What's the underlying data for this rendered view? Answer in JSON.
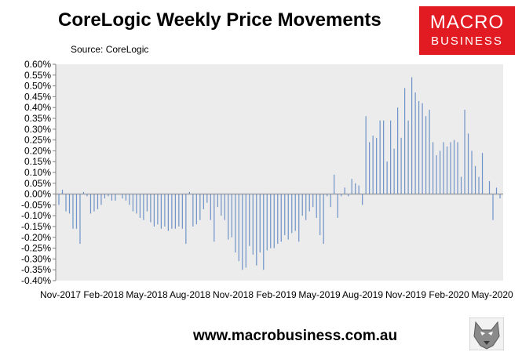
{
  "header": {
    "title": "CoreLogic Weekly Price Movements",
    "source": "Source: CoreLogic"
  },
  "logo": {
    "line1": "MACRO",
    "line2": "BUSINESS"
  },
  "footer": {
    "url": "www.macrobusiness.com.au"
  },
  "colors": {
    "bar": "#6f93c8",
    "plot_background": "#ececec",
    "logo_background": "#e21b22"
  },
  "chart_data": {
    "type": "bar",
    "title": "CoreLogic Weekly Price Movements",
    "ylabel": "",
    "xlabel": "",
    "ylim": [
      -0.004,
      0.006
    ],
    "y_ticks": [
      0.006,
      0.0055,
      0.005,
      0.0045,
      0.004,
      0.0035,
      0.003,
      0.0025,
      0.002,
      0.0015,
      0.001,
      0.0005,
      0.0,
      -0.0005,
      -0.001,
      -0.0015,
      -0.002,
      -0.0025,
      -0.003,
      -0.0035,
      -0.004
    ],
    "y_tick_labels": [
      "0.60%",
      "0.55%",
      "0.50%",
      "0.45%",
      "0.40%",
      "0.35%",
      "0.30%",
      "0.25%",
      "0.20%",
      "0.15%",
      "0.10%",
      "0.05%",
      "0.00%",
      "-0.05%",
      "-0.10%",
      "-0.15%",
      "-0.20%",
      "-0.25%",
      "-0.30%",
      "-0.35%",
      "-0.40%"
    ],
    "x_tick_labels": [
      "Nov-2017",
      "Feb-2018",
      "May-2018",
      "Aug-2018",
      "Nov-2018",
      "Feb-2019",
      "May-2019",
      "Aug-2019",
      "Nov-2019",
      "Feb-2020",
      "May-2020"
    ],
    "grid": false,
    "legend": "none",
    "series": [
      {
        "values": [
          -0.0005,
          0.0002,
          -0.0008,
          -0.0009,
          -0.0016,
          -0.0016,
          -0.0023,
          0.0001,
          -0.0001,
          -0.0009,
          -0.0008,
          -0.0007,
          -0.0005,
          -0.0002,
          -0.0001,
          -0.0003,
          -0.0003,
          0.0,
          -0.0002,
          -0.0003,
          -0.0005,
          -0.0008,
          -0.0009,
          -0.0011,
          -0.0012,
          -0.0008,
          -0.0013,
          -0.0015,
          -0.0014,
          -0.0016,
          -0.0015,
          -0.0017,
          -0.0016,
          -0.0016,
          -0.0015,
          -0.0016,
          -0.0023,
          0.0001,
          -0.0015,
          -0.0014,
          -0.0012,
          -0.0007,
          -0.0004,
          -0.0012,
          -0.0022,
          -0.0006,
          -0.001,
          -0.0012,
          -0.0021,
          -0.002,
          -0.0027,
          -0.0031,
          -0.0035,
          -0.0034,
          -0.0024,
          -0.0028,
          -0.0033,
          -0.0027,
          -0.0035,
          -0.0026,
          -0.0025,
          -0.0025,
          -0.0023,
          -0.0022,
          -0.0019,
          -0.0021,
          -0.0018,
          -0.0017,
          -0.0022,
          -0.001,
          -0.0012,
          -0.0008,
          -0.0006,
          -0.0011,
          -0.0019,
          -0.0023,
          -0.0001,
          -0.0006,
          0.0009,
          -0.0011,
          -0.0001,
          0.0003,
          -0.0001,
          0.0007,
          0.0005,
          0.0004,
          -0.0005,
          0.0036,
          0.0024,
          0.0027,
          0.0026,
          0.0034,
          0.0034,
          0.0015,
          0.0034,
          0.0021,
          0.004,
          0.0026,
          0.0049,
          0.0034,
          0.0054,
          0.0047,
          0.0043,
          0.0042,
          0.0036,
          0.0039,
          0.0024,
          0.0018,
          0.002,
          0.0024,
          0.0022,
          0.0024,
          0.0025,
          0.0024,
          0.0008,
          0.0039,
          0.0028,
          0.002,
          0.0013,
          0.0008,
          0.0019,
          0.0,
          0.0006,
          -0.0012,
          0.0003,
          -0.0002
        ]
      }
    ]
  }
}
